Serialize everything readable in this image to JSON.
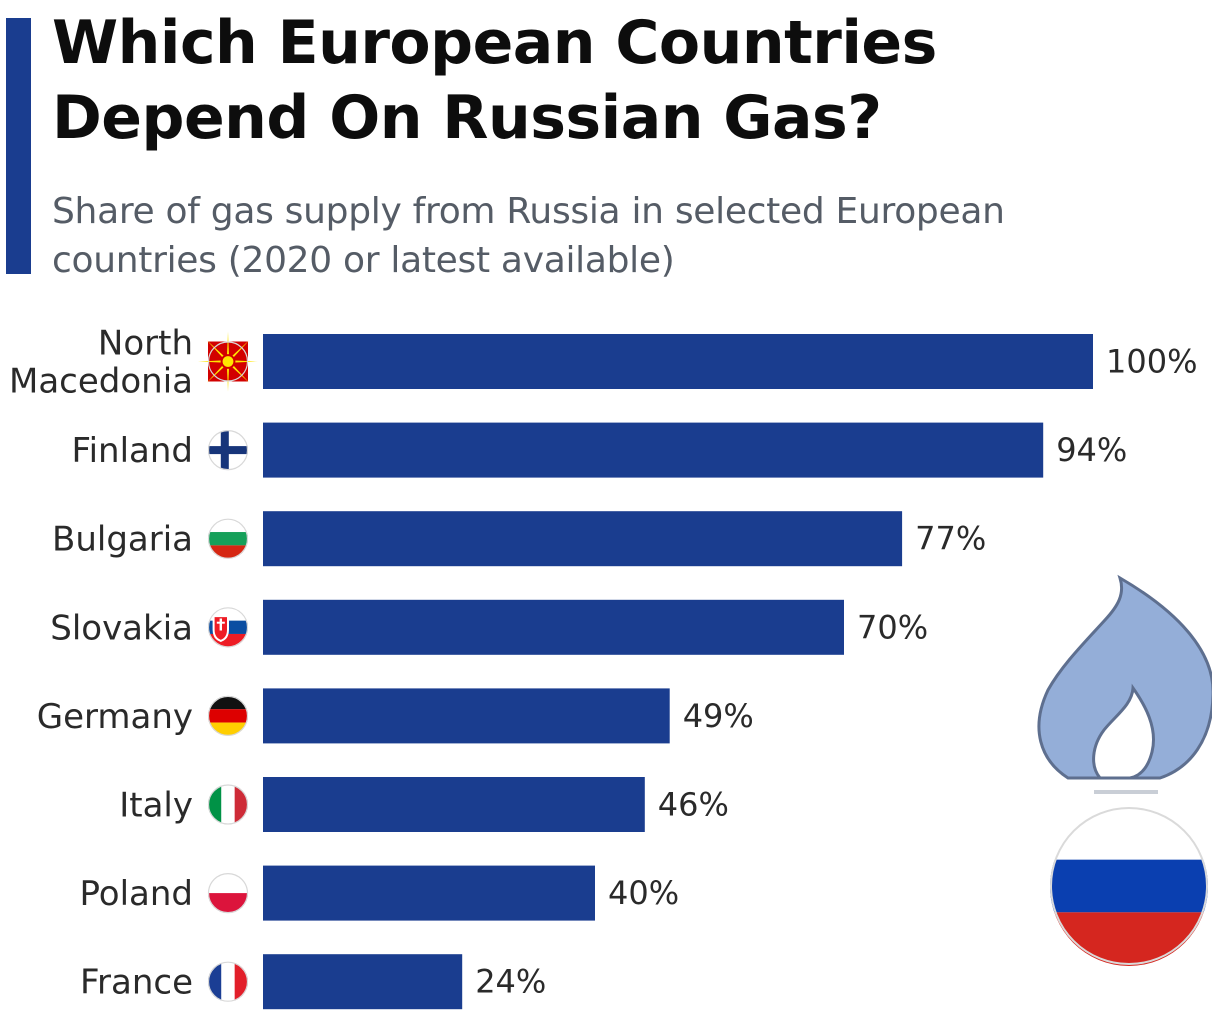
{
  "header": {
    "title_line1": "Which European Countries",
    "title_line2": "Depend On Russian Gas?",
    "subtitle_line1": "Share of gas supply from Russia in selected European",
    "subtitle_line2": "countries (2020 or latest available)"
  },
  "colors": {
    "accent": "#1a3d8f",
    "bar": "#1a3d8f",
    "flame_fill": "#94aed8",
    "flame_stroke": "#5e6f8f"
  },
  "chart_data": {
    "type": "bar",
    "orientation": "horizontal",
    "title": "Which European Countries Depend On Russian Gas?",
    "subtitle": "Share of gas supply from Russia in selected European countries (2020 or latest available)",
    "xlim": [
      0,
      100
    ],
    "grid": false,
    "unit_suffix": "%",
    "categories": [
      {
        "label_lines": [
          "North",
          "Macedonia"
        ],
        "flag": "north-macedonia"
      },
      {
        "label_lines": [
          "Finland"
        ],
        "flag": "finland"
      },
      {
        "label_lines": [
          "Bulgaria"
        ],
        "flag": "bulgaria"
      },
      {
        "label_lines": [
          "Slovakia"
        ],
        "flag": "slovakia"
      },
      {
        "label_lines": [
          "Germany"
        ],
        "flag": "germany"
      },
      {
        "label_lines": [
          "Italy"
        ],
        "flag": "italy"
      },
      {
        "label_lines": [
          "Poland"
        ],
        "flag": "poland"
      },
      {
        "label_lines": [
          "France"
        ],
        "flag": "france"
      }
    ],
    "values": [
      100,
      94,
      77,
      70,
      49,
      46,
      40,
      24
    ],
    "value_labels": [
      "100%",
      "94%",
      "77%",
      "70%",
      "49%",
      "46%",
      "40%",
      "24%"
    ]
  },
  "illustration": {
    "icon": "gas-flame-icon",
    "flag": "russia"
  }
}
